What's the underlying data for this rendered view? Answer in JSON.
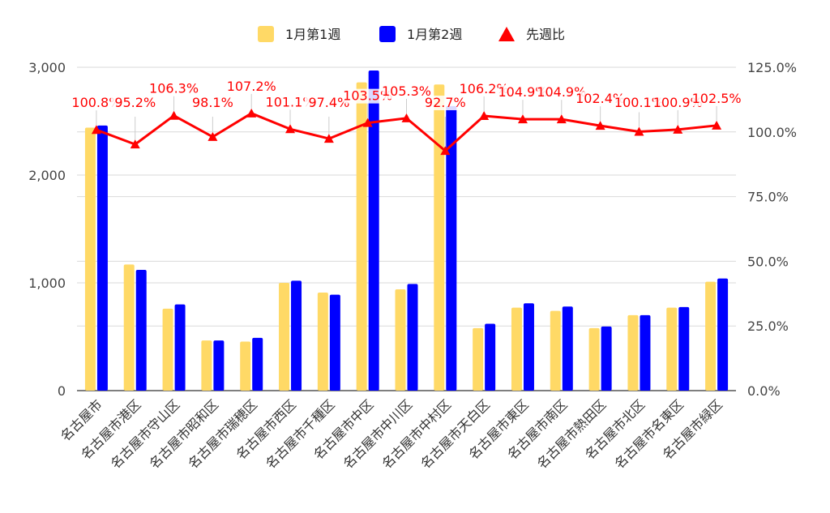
{
  "chart_data": {
    "type": "bar",
    "categories": [
      "名古屋市",
      "名古屋市港区",
      "名古屋市守山区",
      "名古屋市昭和区",
      "名古屋市瑞穂区",
      "名古屋市西区",
      "名古屋市千種区",
      "名古屋市中区",
      "名古屋市中川区",
      "名古屋市中村区",
      "名古屋市天白区",
      "名古屋市東区",
      "名古屋市南区",
      "名古屋市熱田区",
      "名古屋市北区",
      "名古屋市名東区",
      "名古屋市緑区"
    ],
    "series": [
      {
        "name": "1月第1週",
        "axis": "left",
        "kind": "bar",
        "color": "#ffd966",
        "values": [
          2440,
          1170,
          760,
          465,
          455,
          1000,
          910,
          2860,
          940,
          2840,
          580,
          770,
          740,
          580,
          700,
          770,
          1010
        ]
      },
      {
        "name": "1月第2週",
        "axis": "left",
        "kind": "bar",
        "color": "#0000ff",
        "values": [
          2460,
          1120,
          800,
          465,
          490,
          1020,
          890,
          2970,
          990,
          2640,
          620,
          810,
          780,
          595,
          700,
          775,
          1040
        ]
      },
      {
        "name": "先週比",
        "axis": "right",
        "kind": "line",
        "color": "#ff0000",
        "values": [
          100.8,
          95.2,
          106.3,
          98.1,
          107.2,
          101.1,
          97.4,
          103.5,
          105.3,
          92.7,
          106.2,
          104.9,
          104.9,
          102.4,
          100.1,
          100.9,
          102.5
        ],
        "labels": [
          "100.8%",
          "95.2%",
          "106.3%",
          "98.1%",
          "107.2%",
          "101.1%",
          "97.4%",
          "103.5%",
          "105.3%",
          "92.7%",
          "106.2%",
          "104.9%",
          "104.9%",
          "102.4%",
          "100.1%",
          "100.9%",
          "102.5%"
        ]
      }
    ],
    "y_left": {
      "range": [
        0,
        3000
      ],
      "ticks": [
        "0",
        "1,000",
        "2,000",
        "3,000"
      ]
    },
    "y_right": {
      "range": [
        0,
        125
      ],
      "ticks": [
        "0.0%",
        "25.0%",
        "50.0%",
        "75.0%",
        "100.0%",
        "125.0%"
      ]
    },
    "legend": {
      "position": "top"
    },
    "grid": true
  }
}
